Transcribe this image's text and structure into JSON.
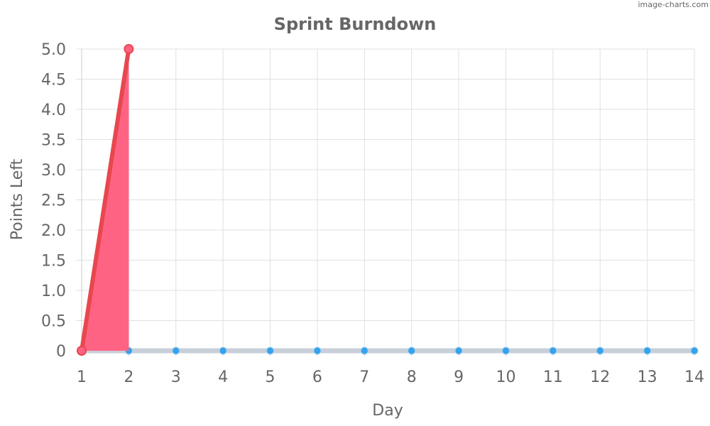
{
  "watermark": "image-charts.com",
  "chart_data": {
    "type": "line",
    "title": "Sprint Burndown",
    "xlabel": "Day",
    "ylabel": "Points Left",
    "x": [
      1,
      2,
      3,
      4,
      5,
      6,
      7,
      8,
      9,
      10,
      11,
      12,
      13,
      14
    ],
    "xlim": [
      1,
      14
    ],
    "ylim": [
      0,
      5
    ],
    "y_ticks": [
      "0",
      "0.5",
      "1.0",
      "1.5",
      "2.0",
      "2.5",
      "3.0",
      "3.5",
      "4.0",
      "4.5",
      "5.0"
    ],
    "grid": true,
    "legend": "none",
    "series": [
      {
        "fill": "area",
        "color": "#e8474e",
        "fill_color": "#ff6384",
        "marker_color": "#ff6384",
        "x": [
          1,
          2
        ],
        "values": [
          0,
          5
        ]
      },
      {
        "color": "#c9cfd9",
        "marker_color": "#36a2eb",
        "x": [
          1,
          2,
          3,
          4,
          5,
          6,
          7,
          8,
          9,
          10,
          11,
          12,
          13,
          14
        ],
        "values": [
          0,
          0,
          0,
          0,
          0,
          0,
          0,
          0,
          0,
          0,
          0,
          0,
          0,
          0
        ]
      }
    ]
  }
}
